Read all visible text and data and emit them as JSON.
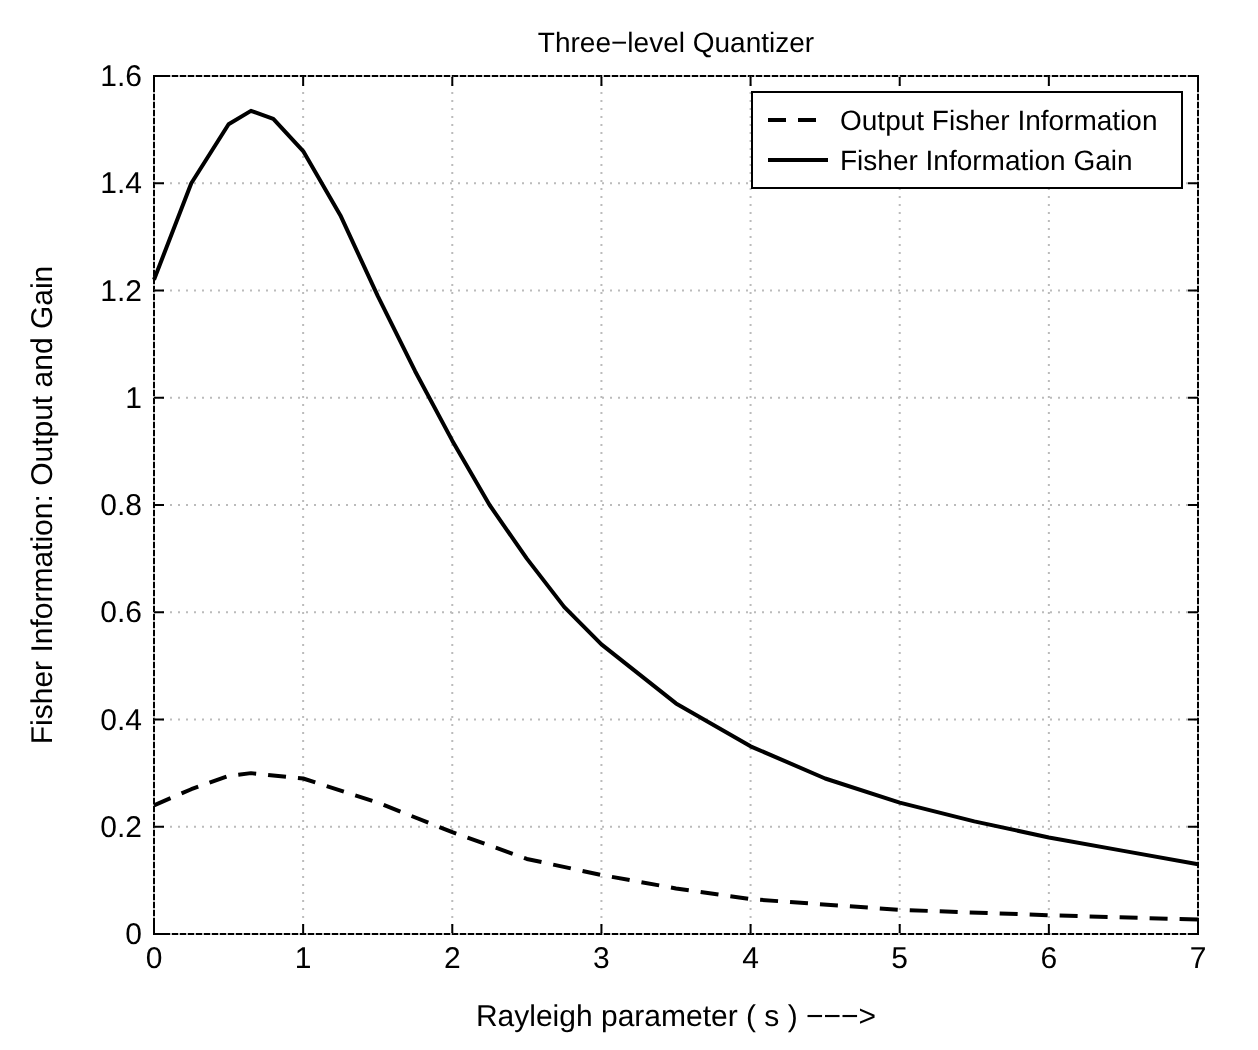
{
  "chart_data": {
    "type": "line",
    "title": "Three−level Quantizer",
    "xlabel": "Rayleigh parameter ( s ) −−−>",
    "ylabel": "Fisher Information: Output and Gain",
    "xlim": [
      0,
      7
    ],
    "ylim": [
      0,
      1.6
    ],
    "xticks": [
      0,
      1,
      2,
      3,
      4,
      5,
      6,
      7
    ],
    "yticks": [
      0,
      0.2,
      0.4,
      0.6,
      0.8,
      1,
      1.2,
      1.4,
      1.6
    ],
    "grid": true,
    "legend": "top right",
    "series": [
      {
        "name": "Output Fisher Information",
        "color": "#000000",
        "line_style": "dashed",
        "x": [
          0,
          0.25,
          0.5,
          0.65,
          1,
          1.5,
          2,
          2.5,
          3,
          3.5,
          4,
          5,
          6,
          7
        ],
        "values": [
          0.24,
          0.27,
          0.295,
          0.3,
          0.29,
          0.245,
          0.19,
          0.14,
          0.11,
          0.085,
          0.065,
          0.045,
          0.035,
          0.027
        ]
      },
      {
        "name": "Fisher Information Gain",
        "color": "#000000",
        "line_style": "solid",
        "x": [
          0,
          0.25,
          0.5,
          0.65,
          0.8,
          1,
          1.25,
          1.5,
          1.75,
          2,
          2.25,
          2.5,
          2.75,
          3,
          3.5,
          4,
          4.5,
          5,
          5.5,
          6,
          6.5,
          7
        ],
        "values": [
          1.22,
          1.4,
          1.51,
          1.535,
          1.52,
          1.46,
          1.34,
          1.19,
          1.05,
          0.92,
          0.8,
          0.7,
          0.61,
          0.54,
          0.43,
          0.35,
          0.29,
          0.245,
          0.21,
          0.18,
          0.155,
          0.13
        ]
      }
    ]
  }
}
